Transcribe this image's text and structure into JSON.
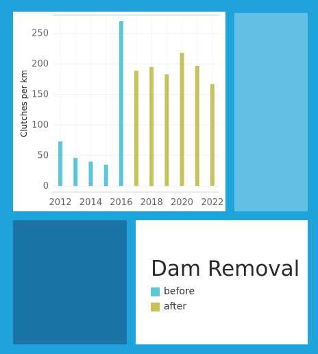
{
  "chart_data": {
    "type": "bar",
    "title": "",
    "xlabel": "",
    "ylabel": "Clutches per km",
    "x": [
      2012,
      2013,
      2014,
      2015,
      2016,
      2017,
      2018,
      2019,
      2020,
      2021,
      2022
    ],
    "x_tick_labels": [
      "2012",
      "2014",
      "2016",
      "2018",
      "2020",
      "2022"
    ],
    "y_ticks": [
      0,
      50,
      100,
      150,
      200,
      250
    ],
    "ylim": [
      -10,
      280
    ],
    "grid": true,
    "series": [
      {
        "name": "before",
        "color": "#5bc8d9",
        "x": [
          2012,
          2013,
          2014,
          2015,
          2016
        ],
        "values": [
          73,
          46,
          40,
          35,
          270
        ]
      },
      {
        "name": "after",
        "color": "#c8c25a",
        "x": [
          2017,
          2018,
          2019,
          2020,
          2021,
          2022
        ],
        "values": [
          189,
          195,
          183,
          218,
          197,
          167
        ]
      }
    ]
  },
  "legend": {
    "title": "Dam Removal",
    "items": [
      {
        "label": "before",
        "color": "#5bc8d9"
      },
      {
        "label": "after",
        "color": "#c8c25a"
      }
    ]
  },
  "tiles": {
    "light_color": "#63bfe6",
    "dark_color": "#1b73a6"
  }
}
